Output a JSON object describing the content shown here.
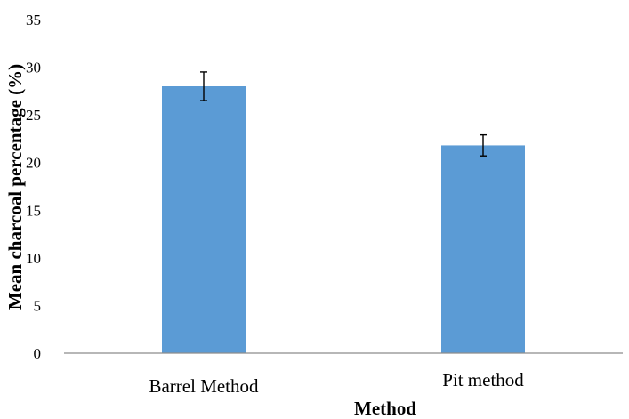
{
  "chart_data": {
    "type": "bar",
    "title": "",
    "categories": [
      "Barrel Method",
      "Pit method"
    ],
    "values": [
      28.0,
      21.8
    ],
    "error": [
      1.5,
      1.1
    ],
    "xlabel": "Method",
    "ylabel": "Mean charcoal percentage (%)",
    "ylim": [
      0,
      35
    ],
    "yticks": [
      0,
      5,
      10,
      15,
      20,
      25,
      30,
      35
    ],
    "grid": false,
    "legend": "none",
    "bar_color": "#5b9bd5"
  }
}
